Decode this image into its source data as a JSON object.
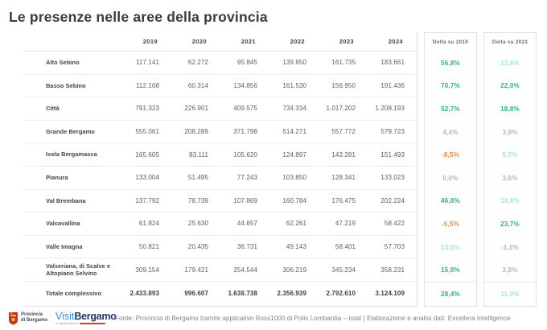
{
  "title": "Le presenze nelle aree della provincia",
  "colors": {
    "delta_positive_strong": "#2fae81",
    "delta_positive_light": "#a5e7c3",
    "delta_negative": "#e68a3d",
    "delta_neutral": "#b5b5b5",
    "logo_red": "#d23b33",
    "logo_navy": "#17375e",
    "logo_blue": "#3f86c5"
  },
  "table": {
    "year_headers": [
      "2019",
      "2020",
      "2021",
      "2022",
      "2023",
      "2024"
    ],
    "delta_headers": [
      "Delta su 2019",
      "Delta su 2023"
    ],
    "rows": [
      {
        "label": "Alto Sebino",
        "values": [
          "117.141",
          "62.272",
          "95.845",
          "139.650",
          "161.735",
          "183.661"
        ],
        "delta2019": {
          "text": "56,8%",
          "tone": "green"
        },
        "delta2023": {
          "text": "13,6%",
          "tone": "lightgreen"
        }
      },
      {
        "label": "Basso Sebino",
        "values": [
          "112.168",
          "60.314",
          "134.856",
          "161.530",
          "156.950",
          "191.436"
        ],
        "delta2019": {
          "text": "70,7%",
          "tone": "green"
        },
        "delta2023": {
          "text": "22,0%",
          "tone": "green"
        }
      },
      {
        "label": "Città",
        "values": [
          "791.323",
          "226.901",
          "409.575",
          "734.334",
          "1.017.202",
          "1.208.193"
        ],
        "delta2019": {
          "text": "52,7%",
          "tone": "green"
        },
        "delta2023": {
          "text": "18,8%",
          "tone": "green"
        }
      },
      {
        "label": "Grande Bergamo",
        "values": [
          "555.061",
          "208.289",
          "371.798",
          "514.271",
          "557.772",
          "579.723"
        ],
        "delta2019": {
          "text": "4,4%",
          "tone": "gray"
        },
        "delta2023": {
          "text": "3,9%",
          "tone": "gray"
        }
      },
      {
        "label": "Isola Bergamasca",
        "values": [
          "165.605",
          "83.111",
          "105.620",
          "124.897",
          "143.281",
          "151.493"
        ],
        "delta2019": {
          "text": "-8,5%",
          "tone": "orange"
        },
        "delta2023": {
          "text": "5,7%",
          "tone": "lightgreen"
        }
      },
      {
        "label": "Pianura",
        "values": [
          "133.004",
          "51.495",
          "77.243",
          "103.850",
          "128.341",
          "133.023"
        ],
        "delta2019": {
          "text": "0,0%",
          "tone": "gray"
        },
        "delta2023": {
          "text": "3,6%",
          "tone": "gray"
        }
      },
      {
        "label": "Val Brembana",
        "values": [
          "137.792",
          "78.739",
          "107.869",
          "160.784",
          "176.475",
          "202.224"
        ],
        "delta2019": {
          "text": "46,8%",
          "tone": "green"
        },
        "delta2023": {
          "text": "14,6%",
          "tone": "lightgreen"
        }
      },
      {
        "label": "Valcavallina",
        "values": [
          "61.824",
          "25.630",
          "44.657",
          "62.261",
          "47.219",
          "58.422"
        ],
        "delta2019": {
          "text": "-5,5%",
          "tone": "orange"
        },
        "delta2023": {
          "text": "23,7%",
          "tone": "green"
        }
      },
      {
        "label": "Valle Imagna",
        "values": [
          "50.821",
          "20.435",
          "36.731",
          "49.143",
          "58.401",
          "57.703"
        ],
        "delta2019": {
          "text": "13,5%",
          "tone": "lightgreen"
        },
        "delta2023": {
          "text": "-1,2%",
          "tone": "gray"
        }
      },
      {
        "label": "Valseriana, di Scalve e Altopiano Selvino",
        "values": [
          "309.154",
          "179.421",
          "254.544",
          "306.219",
          "345.234",
          "358.231"
        ],
        "delta2019": {
          "text": "15,9%",
          "tone": "green"
        },
        "delta2023": {
          "text": "3,8%",
          "tone": "gray"
        }
      }
    ],
    "total": {
      "label": "Totale complessivo",
      "values": [
        "2.433.893",
        "996.607",
        "1.638.738",
        "2.356.939",
        "2.792.610",
        "3.124.109"
      ],
      "delta2019": {
        "text": "28,4%",
        "tone": "green"
      },
      "delta2023": {
        "text": "11,9%",
        "tone": "lightgreen"
      }
    }
  },
  "footer": {
    "provincia_line1": "Provincia",
    "provincia_line2": "di Bergamo",
    "visit": "Visit",
    "bergamo": "Bergamo",
    "visit_tagline": "la capitale italiana",
    "fonte": "Fonte: Provincia di Bergamo tramite applicativo Ross1000 di Polis Lombardia – Istat | Elaborazione e analisi dati: Excellera Intelligence"
  }
}
